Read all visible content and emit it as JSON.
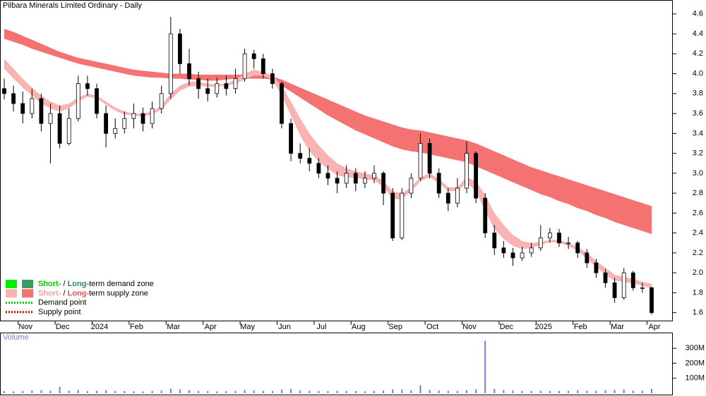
{
  "chart_data": {
    "type": "candlestick",
    "title": "Pilbara Minerals Limited Ordinary - Daily",
    "categories": [
      null,
      null,
      "Nov",
      null,
      null,
      null,
      "Dec",
      null,
      null,
      null,
      "2024",
      null,
      null,
      null,
      "Feb",
      null,
      null,
      null,
      "Mar",
      null,
      null,
      null,
      "Apr",
      null,
      null,
      null,
      "May",
      null,
      null,
      null,
      "Jun",
      null,
      null,
      null,
      "Jul",
      null,
      null,
      null,
      "Aug",
      null,
      null,
      null,
      "Sep",
      null,
      null,
      null,
      "Oct",
      null,
      null,
      null,
      "Nov",
      null,
      null,
      null,
      "Dec",
      null,
      null,
      null,
      "2025",
      null,
      null,
      null,
      "Feb",
      null,
      null,
      null,
      "Mar",
      null,
      null,
      null,
      "Apr"
    ],
    "candles": [
      [
        3.85,
        3.95,
        3.74,
        3.8
      ],
      [
        3.8,
        3.88,
        3.62,
        3.7
      ],
      [
        3.7,
        3.82,
        3.5,
        3.6
      ],
      [
        3.6,
        3.85,
        3.55,
        3.75
      ],
      [
        3.75,
        3.8,
        3.42,
        3.5
      ],
      [
        3.5,
        3.7,
        3.1,
        3.6
      ],
      [
        3.6,
        3.68,
        3.25,
        3.3
      ],
      [
        3.3,
        3.65,
        3.28,
        3.55
      ],
      [
        3.55,
        3.98,
        3.52,
        3.9
      ],
      [
        3.9,
        3.98,
        3.78,
        3.85
      ],
      [
        3.85,
        3.9,
        3.55,
        3.6
      ],
      [
        3.6,
        3.68,
        3.26,
        3.4
      ],
      [
        3.4,
        3.55,
        3.35,
        3.45
      ],
      [
        3.45,
        3.62,
        3.4,
        3.55
      ],
      [
        3.55,
        3.7,
        3.45,
        3.6
      ],
      [
        3.6,
        3.66,
        3.42,
        3.5
      ],
      [
        3.5,
        3.72,
        3.45,
        3.65
      ],
      [
        3.65,
        3.88,
        3.6,
        3.8
      ],
      [
        3.8,
        4.57,
        3.75,
        4.4
      ],
      [
        4.4,
        4.45,
        4.0,
        4.1
      ],
      [
        4.1,
        4.25,
        3.88,
        3.95
      ],
      [
        3.95,
        4.02,
        3.75,
        3.85
      ],
      [
        3.85,
        3.95,
        3.72,
        3.8
      ],
      [
        3.8,
        3.96,
        3.76,
        3.9
      ],
      [
        3.9,
        3.98,
        3.78,
        3.85
      ],
      [
        3.85,
        4.05,
        3.8,
        3.95
      ],
      [
        3.95,
        4.25,
        3.92,
        4.2
      ],
      [
        4.2,
        4.24,
        4.05,
        4.15
      ],
      [
        4.15,
        4.2,
        3.95,
        4.0
      ],
      [
        4.0,
        4.05,
        3.85,
        3.9
      ],
      [
        3.9,
        3.92,
        3.45,
        3.5
      ],
      [
        3.5,
        3.55,
        3.12,
        3.2
      ],
      [
        3.2,
        3.3,
        3.1,
        3.15
      ],
      [
        3.15,
        3.25,
        3.02,
        3.1
      ],
      [
        3.1,
        3.15,
        2.95,
        3.0
      ],
      [
        3.0,
        3.08,
        2.88,
        2.95
      ],
      [
        2.95,
        3.02,
        2.8,
        2.9
      ],
      [
        2.9,
        3.08,
        2.85,
        3.0
      ],
      [
        3.0,
        3.05,
        2.82,
        2.9
      ],
      [
        2.9,
        3.02,
        2.85,
        2.95
      ],
      [
        2.95,
        3.08,
        2.9,
        3.0
      ],
      [
        3.0,
        3.02,
        2.68,
        2.8
      ],
      [
        2.8,
        2.85,
        2.32,
        2.35
      ],
      [
        2.35,
        2.85,
        2.33,
        2.8
      ],
      [
        2.8,
        3.0,
        2.75,
        2.95
      ],
      [
        2.95,
        3.4,
        2.92,
        3.3
      ],
      [
        3.3,
        3.35,
        2.95,
        3.0
      ],
      [
        3.0,
        3.05,
        2.75,
        2.8
      ],
      [
        2.8,
        2.85,
        2.62,
        2.7
      ],
      [
        2.7,
        2.95,
        2.66,
        2.85
      ],
      [
        2.85,
        3.32,
        2.8,
        3.2
      ],
      [
        3.2,
        3.22,
        2.7,
        2.75
      ],
      [
        2.75,
        2.8,
        2.35,
        2.4
      ],
      [
        2.4,
        2.48,
        2.18,
        2.25
      ],
      [
        2.25,
        2.32,
        2.15,
        2.2
      ],
      [
        2.2,
        2.25,
        2.07,
        2.15
      ],
      [
        2.15,
        2.26,
        2.12,
        2.2
      ],
      [
        2.2,
        2.3,
        2.16,
        2.25
      ],
      [
        2.25,
        2.48,
        2.22,
        2.35
      ],
      [
        2.35,
        2.45,
        2.3,
        2.4
      ],
      [
        2.4,
        2.44,
        2.26,
        2.3
      ],
      [
        2.3,
        2.36,
        2.24,
        2.3
      ],
      [
        2.3,
        2.32,
        2.15,
        2.2
      ],
      [
        2.2,
        2.24,
        2.05,
        2.1
      ],
      [
        2.1,
        2.14,
        1.95,
        2.0
      ],
      [
        2.0,
        2.04,
        1.85,
        1.9
      ],
      [
        1.9,
        1.95,
        1.7,
        1.75
      ],
      [
        1.75,
        2.05,
        1.73,
        2.0
      ],
      [
        2.0,
        2.02,
        1.82,
        1.85
      ],
      [
        1.85,
        1.9,
        1.8,
        1.85
      ],
      [
        1.85,
        1.86,
        1.58,
        1.6
      ]
    ],
    "long_term_band": {
      "color": "#f47272",
      "upper": [
        4.45,
        4.42,
        4.38,
        4.34,
        4.3,
        4.26,
        4.22,
        4.19,
        4.16,
        4.14,
        4.12,
        4.1,
        4.08,
        4.06,
        4.04,
        4.03,
        4.02,
        4.01,
        4.0,
        4.0,
        4.0,
        3.99,
        3.99,
        3.99,
        3.99,
        3.99,
        3.99,
        3.99,
        3.98,
        3.97,
        3.94,
        3.9,
        3.86,
        3.82,
        3.78,
        3.74,
        3.7,
        3.66,
        3.62,
        3.58,
        3.55,
        3.52,
        3.49,
        3.46,
        3.44,
        3.43,
        3.41,
        3.39,
        3.37,
        3.35,
        3.33,
        3.3,
        3.26,
        3.22,
        3.18,
        3.14,
        3.1,
        3.06,
        3.03,
        3.0,
        2.97,
        2.94,
        2.91,
        2.88,
        2.85,
        2.82,
        2.79,
        2.76,
        2.73,
        2.7,
        2.67
      ],
      "lower": [
        4.35,
        4.32,
        4.29,
        4.25,
        4.22,
        4.19,
        4.16,
        4.13,
        4.1,
        4.08,
        4.06,
        4.04,
        4.02,
        4.0,
        3.98,
        3.97,
        3.96,
        3.96,
        3.95,
        3.95,
        3.94,
        3.94,
        3.93,
        3.93,
        3.94,
        3.95,
        3.95,
        3.95,
        3.95,
        3.94,
        3.88,
        3.82,
        3.76,
        3.7,
        3.64,
        3.58,
        3.53,
        3.48,
        3.43,
        3.39,
        3.35,
        3.31,
        3.27,
        3.24,
        3.22,
        3.21,
        3.19,
        3.17,
        3.15,
        3.13,
        3.11,
        3.07,
        3.03,
        2.99,
        2.95,
        2.91,
        2.87,
        2.83,
        2.79,
        2.76,
        2.72,
        2.69,
        2.65,
        2.62,
        2.58,
        2.55,
        2.51,
        2.48,
        2.45,
        2.42,
        2.39
      ]
    },
    "short_term_band": {
      "color": "#f9b3b3",
      "upper": [
        4.15,
        4.05,
        3.95,
        3.86,
        3.78,
        3.72,
        3.68,
        3.7,
        3.76,
        3.8,
        3.78,
        3.72,
        3.66,
        3.62,
        3.6,
        3.6,
        3.62,
        3.68,
        3.8,
        3.88,
        3.92,
        3.92,
        3.9,
        3.89,
        3.9,
        3.94,
        4.0,
        4.04,
        4.02,
        3.98,
        3.88,
        3.72,
        3.55,
        3.4,
        3.28,
        3.18,
        3.1,
        3.05,
        3.02,
        3.0,
        2.98,
        2.92,
        2.82,
        2.8,
        2.86,
        2.96,
        3.0,
        2.94,
        2.86,
        2.86,
        2.96,
        2.92,
        2.78,
        2.6,
        2.48,
        2.38,
        2.32,
        2.3,
        2.31,
        2.33,
        2.33,
        2.3,
        2.26,
        2.2,
        2.12,
        2.05,
        1.98,
        1.96,
        1.94,
        1.91,
        1.89
      ],
      "lower": [
        4.05,
        3.95,
        3.86,
        3.78,
        3.7,
        3.65,
        3.62,
        3.65,
        3.72,
        3.77,
        3.75,
        3.69,
        3.63,
        3.59,
        3.58,
        3.57,
        3.59,
        3.64,
        3.74,
        3.83,
        3.87,
        3.88,
        3.87,
        3.87,
        3.88,
        3.9,
        3.94,
        3.98,
        3.98,
        3.94,
        3.78,
        3.58,
        3.38,
        3.22,
        3.12,
        3.04,
        2.98,
        2.96,
        2.95,
        2.94,
        2.93,
        2.86,
        2.74,
        2.74,
        2.82,
        2.92,
        2.96,
        2.9,
        2.82,
        2.82,
        2.9,
        2.82,
        2.62,
        2.44,
        2.34,
        2.27,
        2.24,
        2.25,
        2.28,
        2.31,
        2.3,
        2.27,
        2.22,
        2.14,
        2.06,
        1.98,
        1.92,
        1.91,
        1.89,
        1.87,
        1.84
      ]
    },
    "ylim": [
      1.52,
      4.74
    ],
    "yticks": [
      1.6,
      1.8,
      {
        "value": 2,
        "label": "2.0"
      },
      2.2,
      2.4,
      2.6,
      2.8,
      {
        "value": 3,
        "label": "3.0"
      },
      3.2,
      3.4,
      3.6,
      3.8,
      {
        "value": 4,
        "label": "4.0"
      },
      4.2,
      4.4,
      4.6
    ],
    "volume": {
      "label": "Volume",
      "color": "#7a7ad6",
      "values": [
        14,
        12,
        15,
        18,
        20,
        16,
        42,
        18,
        22,
        14,
        16,
        20,
        15,
        14,
        13,
        12,
        15,
        18,
        30,
        25,
        20,
        16,
        14,
        12,
        13,
        15,
        22,
        18,
        16,
        15,
        24,
        28,
        18,
        16,
        15,
        14,
        16,
        15,
        14,
        13,
        15,
        18,
        26,
        24,
        20,
        52,
        22,
        18,
        16,
        15,
        20,
        25,
        350,
        28,
        22,
        18,
        15,
        14,
        16,
        15,
        14,
        16,
        18,
        17,
        16,
        20,
        22,
        25,
        18,
        16,
        28
      ],
      "ylim": [
        0,
        400
      ],
      "yticks": [
        {
          "value": 100,
          "label": "100M"
        },
        {
          "value": 200,
          "label": "200M"
        },
        {
          "value": 300,
          "label": "300M"
        }
      ]
    },
    "legend": {
      "items": [
        {
          "short": "Short-",
          "sep": " / ",
          "long": "Long-",
          "rest": "term demand zone",
          "colors": [
            "#00ee00",
            "#3a9a6a"
          ],
          "text_colors": [
            "#00cc00",
            "#2e8b57"
          ]
        },
        {
          "short": "Short-",
          "sep": " / ",
          "long": "Long-",
          "rest": "term supply zone",
          "colors": [
            "#f9b3b3",
            "#f47272"
          ],
          "text_colors": [
            "#f4a0a0",
            "#e85050"
          ]
        },
        {
          "label": "Demand point",
          "color": "#00cc00"
        },
        {
          "label": "Supply point",
          "color": "#cc0000"
        }
      ]
    }
  }
}
